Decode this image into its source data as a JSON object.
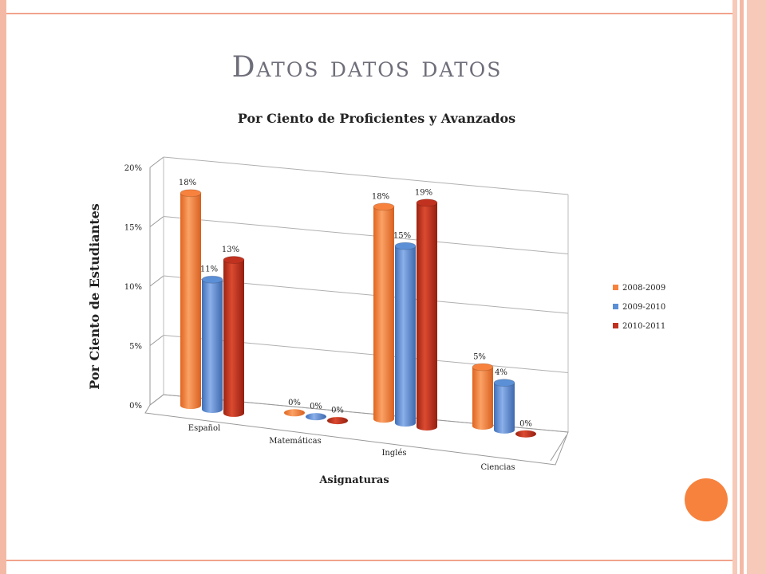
{
  "slide": {
    "title": "Datos datos datos"
  },
  "chart_data": {
    "type": "bar",
    "title": "Por Ciento de Proficientes y Avanzados",
    "xlabel": "Asignaturas",
    "ylabel": "Por Ciento de Estudiantes",
    "categories": [
      "Español",
      "Matemáticas",
      "Inglés",
      "Ciencias"
    ],
    "y_ticks": [
      "0%",
      "5%",
      "10%",
      "15%",
      "20%"
    ],
    "ylim": [
      0,
      20
    ],
    "series": [
      {
        "name": "2008-2009",
        "color": "#f7823e",
        "values": [
          18,
          0,
          18,
          5
        ],
        "labels": [
          "18%",
          "0%",
          "18%",
          "5%"
        ]
      },
      {
        "name": "2009-2010",
        "color": "#5b8fd6",
        "values": [
          11,
          0,
          15,
          4
        ],
        "labels": [
          "11%",
          "0%",
          "15%",
          "4%"
        ]
      },
      {
        "name": "2010-2011",
        "color": "#c0321f",
        "values": [
          13,
          0,
          19,
          0
        ],
        "labels": [
          "13%",
          "0%",
          "19%",
          "0%"
        ]
      }
    ],
    "legend_position": "right",
    "grid": true,
    "style": "3d-cylinder"
  }
}
